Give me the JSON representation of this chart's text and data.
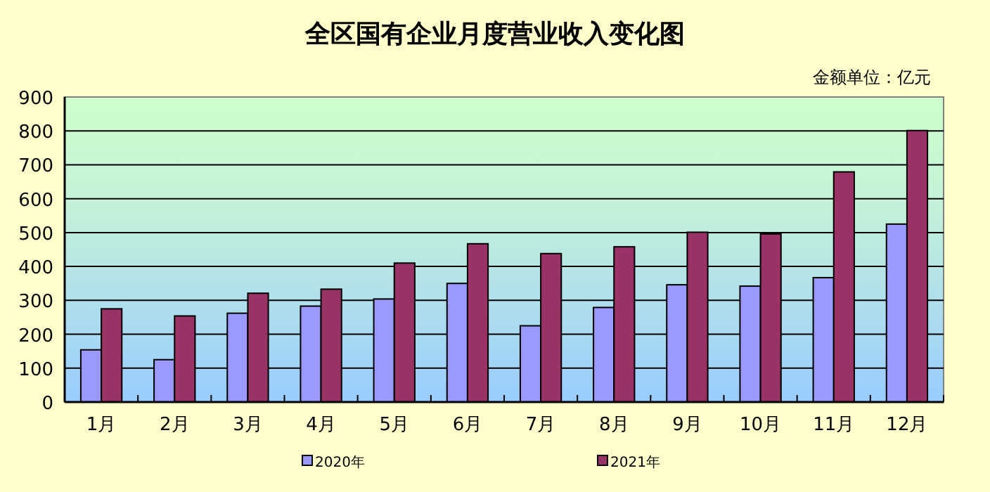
{
  "chart_data": {
    "type": "bar",
    "title": "全区国有企业月度营业收入变化图",
    "annotations": [
      "金额单位：亿元"
    ],
    "categories": [
      "1月",
      "2月",
      "3月",
      "4月",
      "5月",
      "6月",
      "7月",
      "8月",
      "9月",
      "10月",
      "11月",
      "12月"
    ],
    "series": [
      {
        "name": "2020年",
        "color": "#9999ff",
        "values": [
          154,
          125,
          262,
          283,
          304,
          350,
          225,
          279,
          346,
          342,
          367,
          525
        ]
      },
      {
        "name": "2021年",
        "color": "#993366",
        "values": [
          275,
          254,
          321,
          333,
          410,
          467,
          438,
          458,
          501,
          496,
          679,
          801
        ]
      }
    ],
    "ylim": [
      0,
      900
    ],
    "yticks": [
      0,
      100,
      200,
      300,
      400,
      500,
      600,
      700,
      800,
      900
    ],
    "grid": "y",
    "legend": "bottom"
  }
}
